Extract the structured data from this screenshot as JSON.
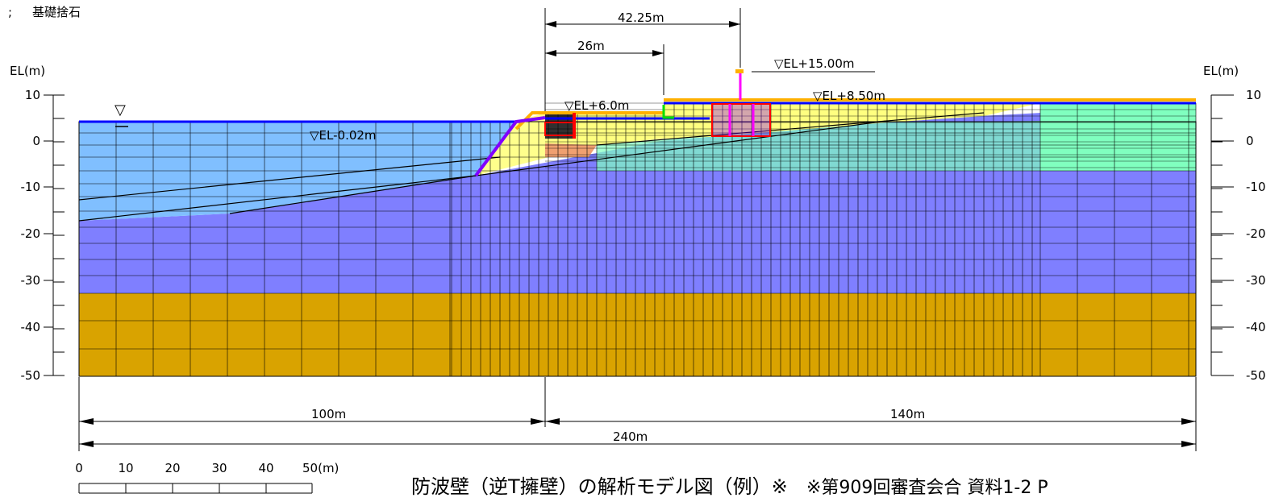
{
  "header": {
    "semicolon": ";",
    "legend_text": "基礎捨石"
  },
  "axis": {
    "left_label": "EL(m)",
    "right_label": "EL(m)",
    "ticks": [
      "10",
      "0",
      "-10",
      "-20",
      "-30",
      "-40",
      "-50"
    ]
  },
  "dimensions": {
    "top_long": "42.25m",
    "top_short": "26m",
    "bottom_left": "100m",
    "bottom_right": "140m",
    "bottom_total": "240m"
  },
  "elevations": {
    "sea_level": "▽EL-0.02m",
    "left_terrace": "▽EL+6.0m",
    "right_terrace": "▽EL+8.50m",
    "wall_top": "▽EL+15.00m",
    "water_symbol": "▽"
  },
  "scale": {
    "labels": [
      "0",
      "10",
      "20",
      "30",
      "40",
      "50(m)"
    ]
  },
  "caption": {
    "title": "防波壁（逆T擁壁）の解析モデル図（例）※",
    "source": "※第909回審査会合 資料1-2 P"
  },
  "colors": {
    "deep_layer": "#d9a300",
    "rock_layer": "#7f7fff",
    "sea_soil": "#80bfff",
    "fill_soil": "#ffff80",
    "right_soil": "#80ffbf",
    "crest": "#ffb000",
    "water_line": "#0000ff",
    "wall": "#ff00ff",
    "highlight": "#ff0000",
    "slope": "#8000ff"
  }
}
